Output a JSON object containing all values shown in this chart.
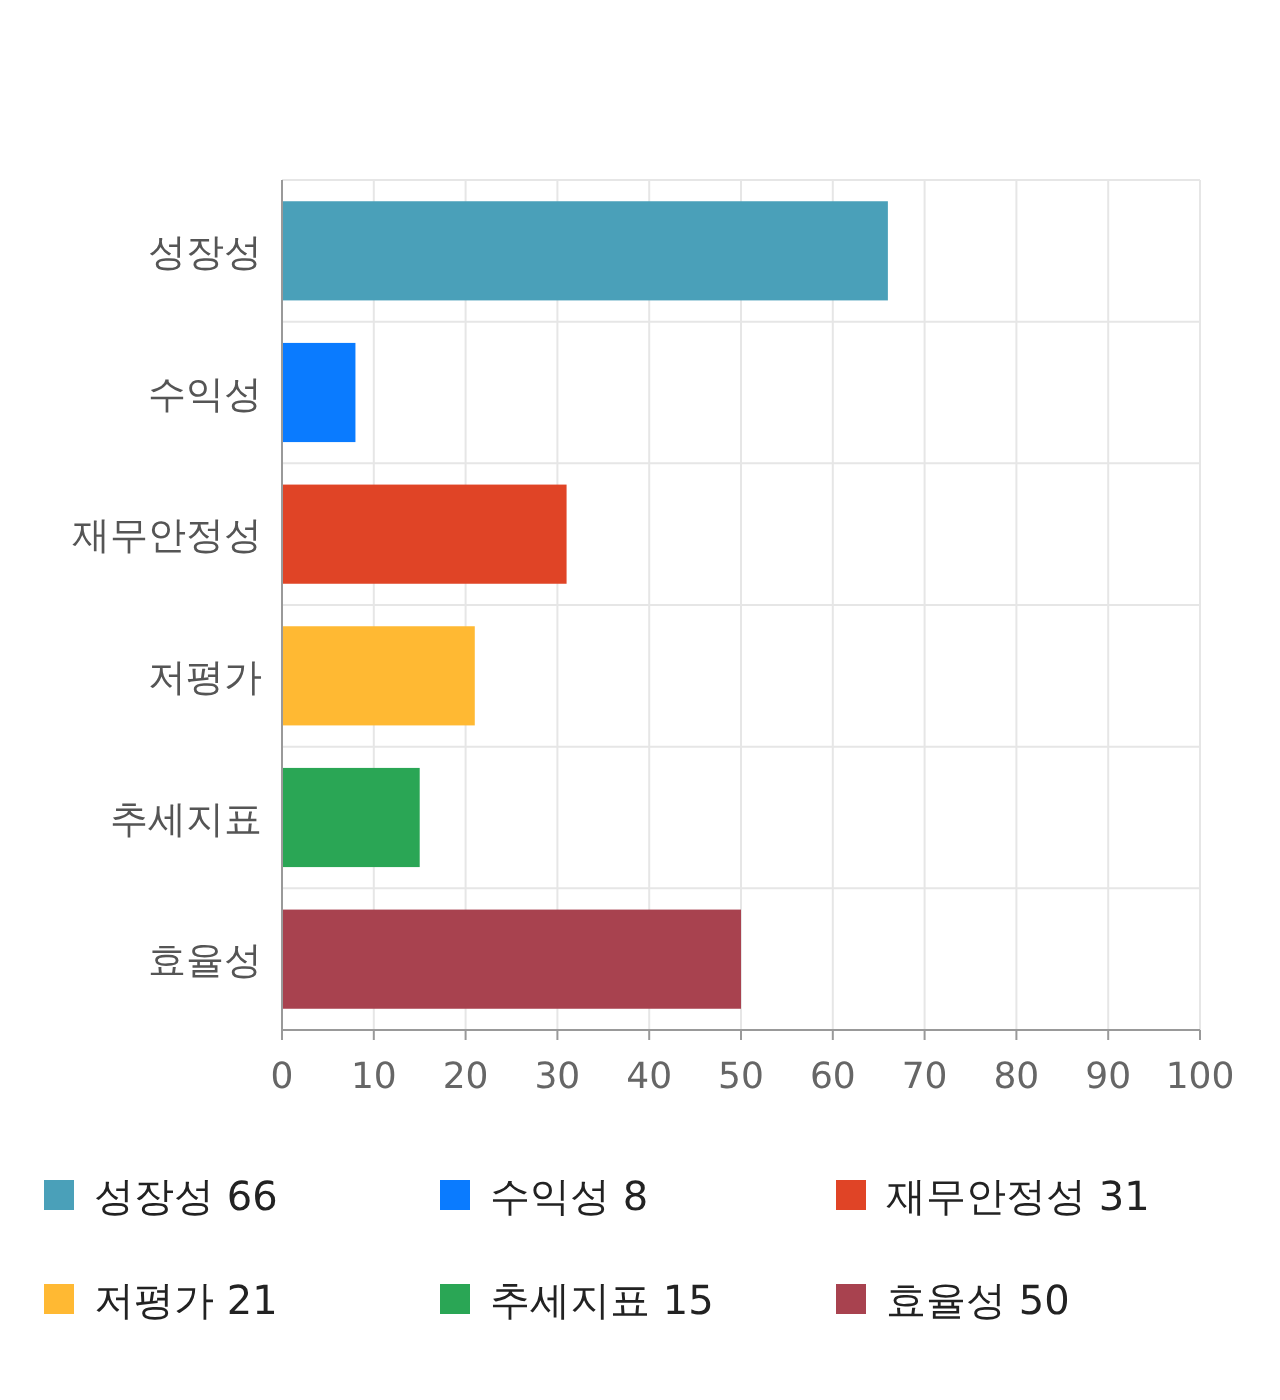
{
  "chart_data": {
    "type": "bar",
    "orientation": "horizontal",
    "categories": [
      "성장성",
      "수익성",
      "재무안정성",
      "저평가",
      "추세지표",
      "효율성"
    ],
    "series": [
      {
        "name": "성장성 66",
        "color": "#4aa0b9",
        "values": [
          66,
          null,
          null,
          null,
          null,
          null
        ]
      },
      {
        "name": "수익성 8",
        "color": "#0a7bff",
        "values": [
          null,
          8,
          null,
          null,
          null,
          null
        ]
      },
      {
        "name": "재무안정성 31",
        "color": "#e04426",
        "values": [
          null,
          null,
          31,
          null,
          null,
          null
        ]
      },
      {
        "name": "저평가 21",
        "color": "#ffb933",
        "values": [
          null,
          null,
          null,
          21,
          null,
          null
        ]
      },
      {
        "name": "추세지표 15",
        "color": "#2aa655",
        "values": [
          null,
          null,
          null,
          null,
          15,
          null
        ]
      },
      {
        "name": "효율성 50",
        "color": "#a8424f",
        "values": [
          null,
          null,
          null,
          null,
          null,
          50
        ]
      }
    ],
    "xlim": [
      0,
      100
    ],
    "xticks": [
      0,
      10,
      20,
      30,
      40,
      50,
      60,
      70,
      80,
      90,
      100
    ],
    "grid": true,
    "legend": "bottom"
  }
}
